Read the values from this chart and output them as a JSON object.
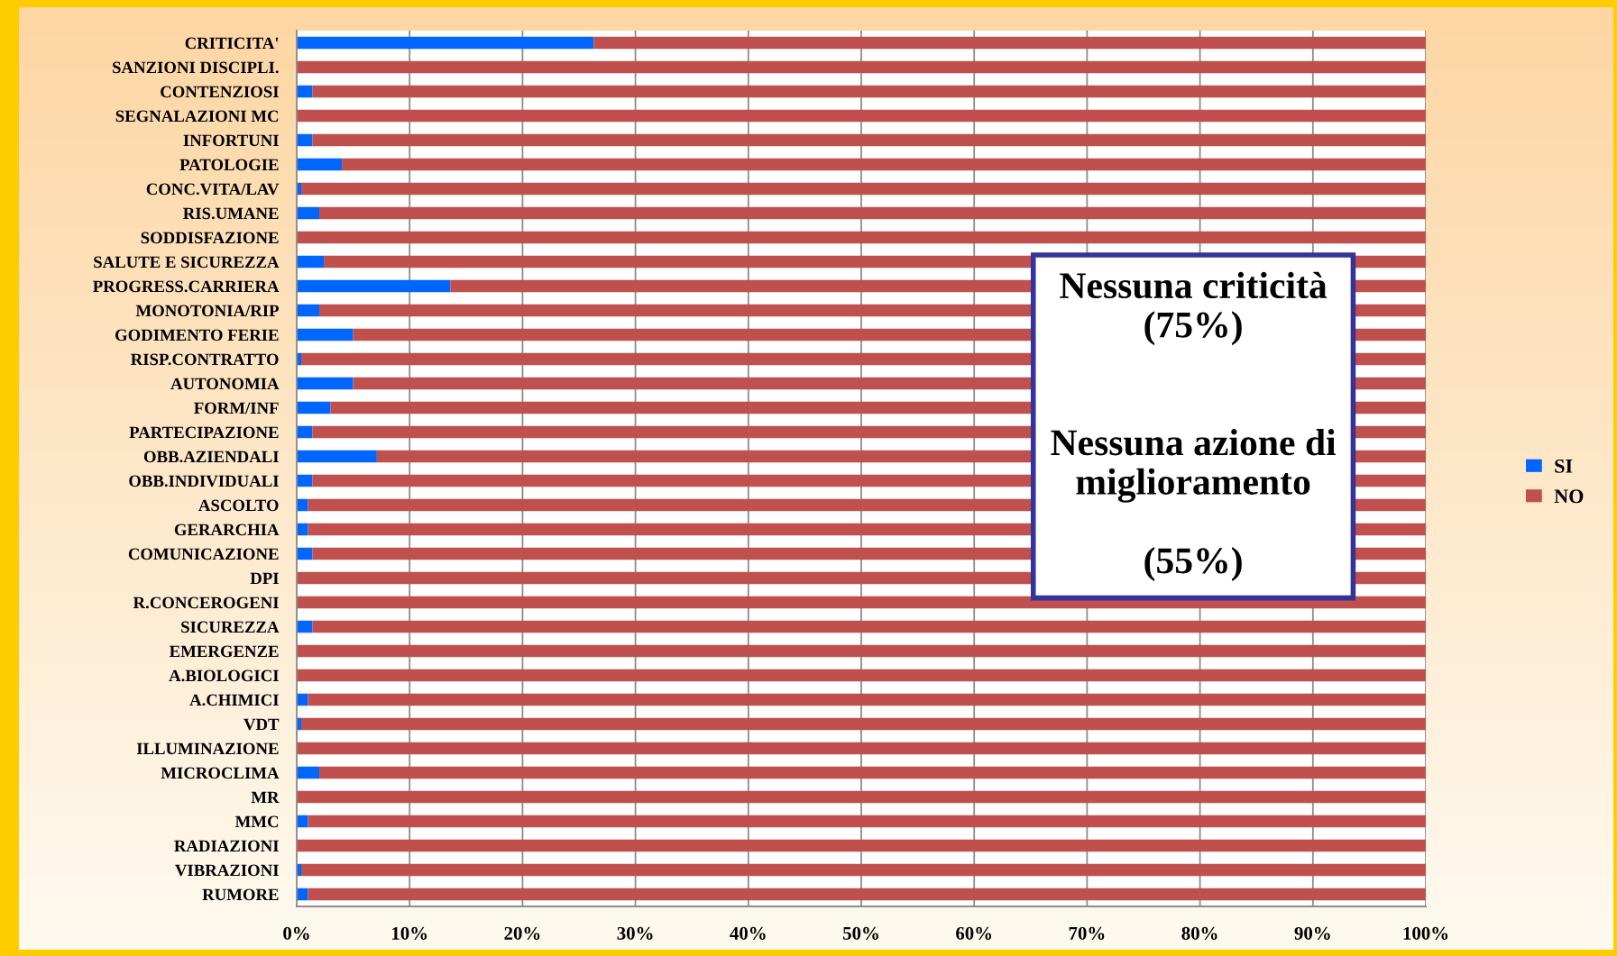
{
  "chart_data": {
    "type": "bar",
    "orientation": "horizontal",
    "stacked": true,
    "categories": [
      "CRITICITA'",
      "SANZIONI DISCIPLI.",
      "CONTENZIOSI",
      "SEGNALAZIONI MC",
      "INFORTUNI",
      "PATOLOGIE",
      "CONC.VITA/LAV",
      "RIS.UMANE",
      "SODDISFAZIONE",
      "SALUTE E SICUREZZA",
      "PROGRESS.CARRIERA",
      "MONOTONIA/RIP",
      "GODIMENTO FERIE",
      "RISP.CONTRATTO",
      "AUTONOMIA",
      "FORM/INF",
      "PARTECIPAZIONE",
      "OBB.AZIENDALI",
      "OBB.INDIVIDUALI",
      "ASCOLTO",
      "GERARCHIA",
      "COMUNICAZIONE",
      "DPI",
      "R.CONCEROGENI",
      "SICUREZZA",
      "EMERGENZE",
      "A.BIOLOGICI",
      "A.CHIMICI",
      "VDT",
      "ILLUMINAZIONE",
      "MICROCLIMA",
      "MR",
      "MMC",
      "RADIAZIONI",
      "VIBRAZIONI",
      "RUMORE"
    ],
    "series": [
      {
        "name": "SI",
        "color": "#0066ff",
        "values": [
          26.3,
          0,
          1.4,
          0,
          1.4,
          4.0,
          0.4,
          2.0,
          0,
          2.4,
          13.6,
          2.0,
          5.0,
          0.4,
          5.0,
          3.0,
          1.4,
          7.1,
          1.4,
          1.0,
          1.0,
          1.4,
          0,
          0,
          1.4,
          0,
          0,
          1.0,
          0.4,
          0,
          2.0,
          0,
          1.0,
          0,
          0.4,
          1.0
        ]
      },
      {
        "name": "NO",
        "color": "#c0504d",
        "values": [
          73.7,
          100,
          98.6,
          100,
          98.6,
          96.0,
          99.6,
          98.0,
          100,
          97.6,
          86.4,
          98.0,
          95.0,
          99.6,
          95.0,
          97.0,
          98.6,
          92.9,
          98.6,
          99.0,
          99.0,
          98.6,
          100,
          100,
          98.6,
          100,
          100,
          99.0,
          99.6,
          100,
          98.0,
          100,
          99.0,
          100,
          99.6,
          99.0
        ]
      }
    ],
    "xlim": [
      0,
      100
    ],
    "xticks": [
      {
        "value": 0,
        "label": "0%"
      },
      {
        "value": 10,
        "label": "10%"
      },
      {
        "value": 20,
        "label": "20%"
      },
      {
        "value": 30,
        "label": "30%"
      },
      {
        "value": 40,
        "label": "40%"
      },
      {
        "value": 50,
        "label": "50%"
      },
      {
        "value": 60,
        "label": "60%"
      },
      {
        "value": 70,
        "label": "70%"
      },
      {
        "value": 80,
        "label": "80%"
      },
      {
        "value": 90,
        "label": "90%"
      },
      {
        "value": 100,
        "label": "100%"
      }
    ],
    "grid": "x",
    "legend": "right",
    "annotations": [
      "Nessuna criticità\n(75%)\n\n\nNessuna azione di\nmiglioramento\n\n(55%)"
    ]
  }
}
